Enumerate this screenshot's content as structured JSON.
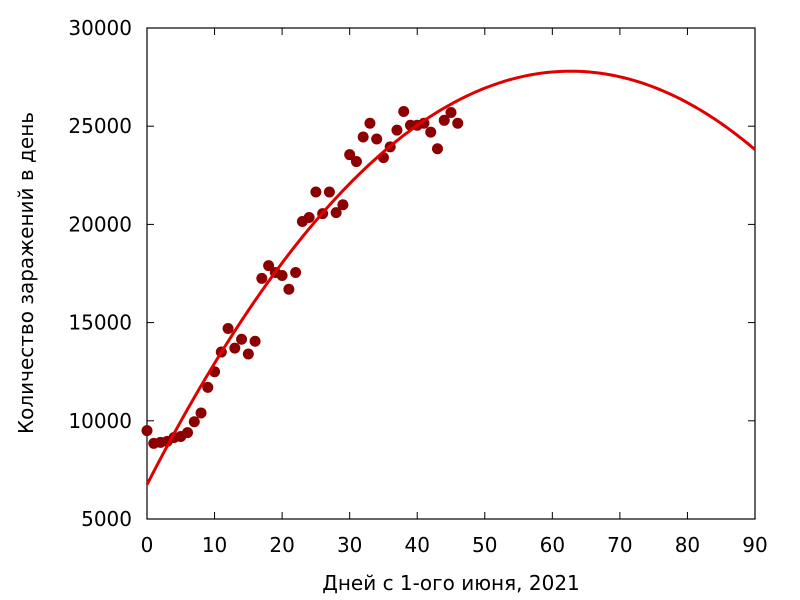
{
  "chart_data": {
    "type": "scatter",
    "title": "",
    "xlabel": "Дней с 1-ого июня, 2021",
    "ylabel": "Количество заражений в день",
    "xlim": [
      0,
      90
    ],
    "ylim": [
      5000,
      30000
    ],
    "xticks": [
      "0",
      "10",
      "20",
      "30",
      "40",
      "50",
      "60",
      "70",
      "80",
      "90"
    ],
    "yticks": [
      "5000",
      "10000",
      "15000",
      "20000",
      "25000",
      "30000"
    ],
    "xtick_values": [
      0,
      10,
      20,
      30,
      40,
      50,
      60,
      70,
      80,
      90
    ],
    "ytick_values": [
      5000,
      10000,
      15000,
      20000,
      25000,
      30000
    ],
    "grid": false,
    "colors": {
      "points": "#8b0000",
      "fit": "#e00000",
      "axes": "#000000"
    },
    "series": [
      {
        "type": "scatter",
        "x": [
          0,
          1,
          2,
          3,
          4,
          5,
          6,
          7,
          8,
          9,
          10,
          11,
          12,
          13,
          14,
          15,
          16,
          17,
          18,
          19,
          20,
          21,
          22,
          23,
          24,
          25,
          26,
          27,
          28,
          29,
          30,
          31,
          32,
          33,
          34,
          35,
          36,
          37,
          38,
          39,
          40,
          41,
          42,
          43,
          44,
          45,
          46
        ],
        "y": [
          9500,
          8850,
          8900,
          8950,
          9150,
          9200,
          9400,
          9950,
          10400,
          11700,
          12500,
          13500,
          14700,
          13700,
          14150,
          13400,
          14050,
          17250,
          17900,
          17550,
          17400,
          16700,
          17550,
          20150,
          20350,
          21650,
          20550,
          21650,
          20600,
          21000,
          23550,
          23200,
          24450,
          25150,
          24350,
          23400,
          23950,
          24800,
          25750,
          25050,
          25050,
          25150,
          24700,
          23850,
          25300,
          25700,
          25150
        ]
      },
      {
        "type": "line",
        "fit": "quadratic",
        "vertex": [
          62.7,
          27800
        ],
        "y_at_0": 6750,
        "x_range": [
          0,
          90
        ]
      }
    ]
  }
}
